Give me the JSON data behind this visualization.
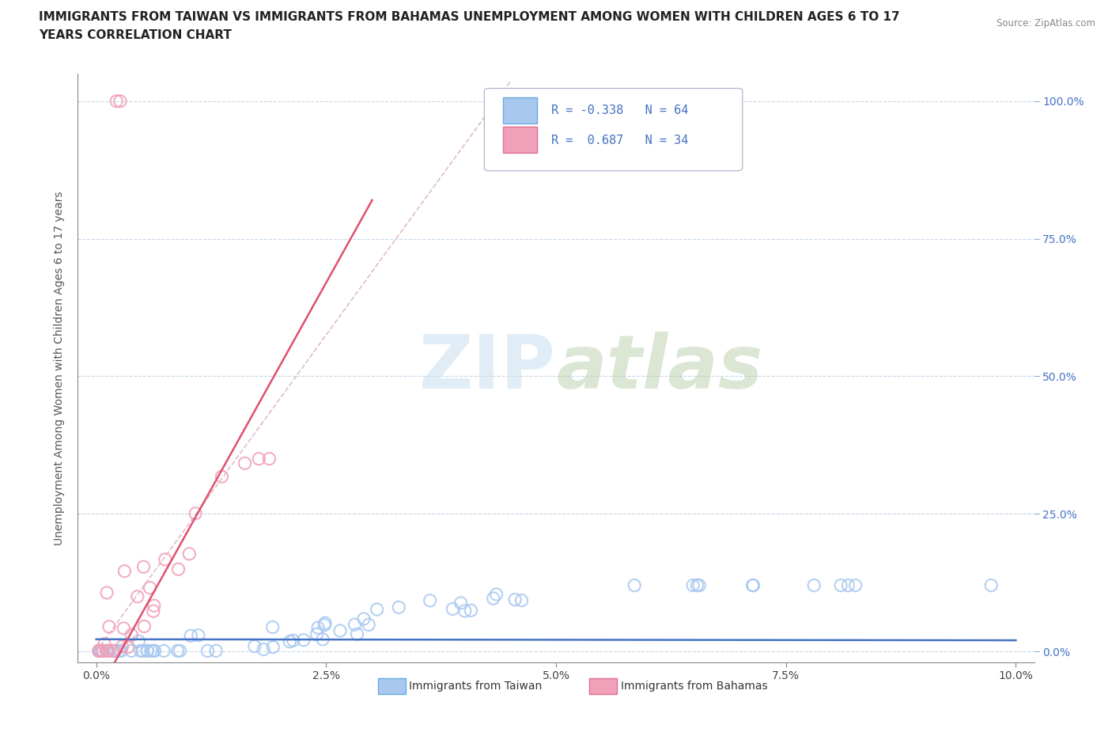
{
  "title_line1": "IMMIGRANTS FROM TAIWAN VS IMMIGRANTS FROM BAHAMAS UNEMPLOYMENT AMONG WOMEN WITH CHILDREN AGES 6 TO 17",
  "title_line2": "YEARS CORRELATION CHART",
  "source": "Source: ZipAtlas.com",
  "ylabel": "Unemployment Among Women with Children Ages 6 to 17 years",
  "taiwan_R": -0.338,
  "taiwan_N": 64,
  "bahamas_R": 0.687,
  "bahamas_N": 34,
  "taiwan_color": "#a8c8f0",
  "taiwan_edge": "#6aaae0",
  "bahamas_color": "#f0a0b8",
  "bahamas_edge": "#e07090",
  "taiwan_line_color": "#4472c4",
  "bahamas_line_color": "#e05070",
  "dashed_line_color": "#d0a0b0",
  "legend_text_color": "#4472c4",
  "watermark_color": "#c8dff0",
  "background_color": "#ffffff",
  "grid_color": "#c8d8e8",
  "xtick_color": "#444444",
  "ytick_color": "#4472c4",
  "title_fontsize": 11,
  "axis_fontsize": 11,
  "tick_fontsize": 10
}
